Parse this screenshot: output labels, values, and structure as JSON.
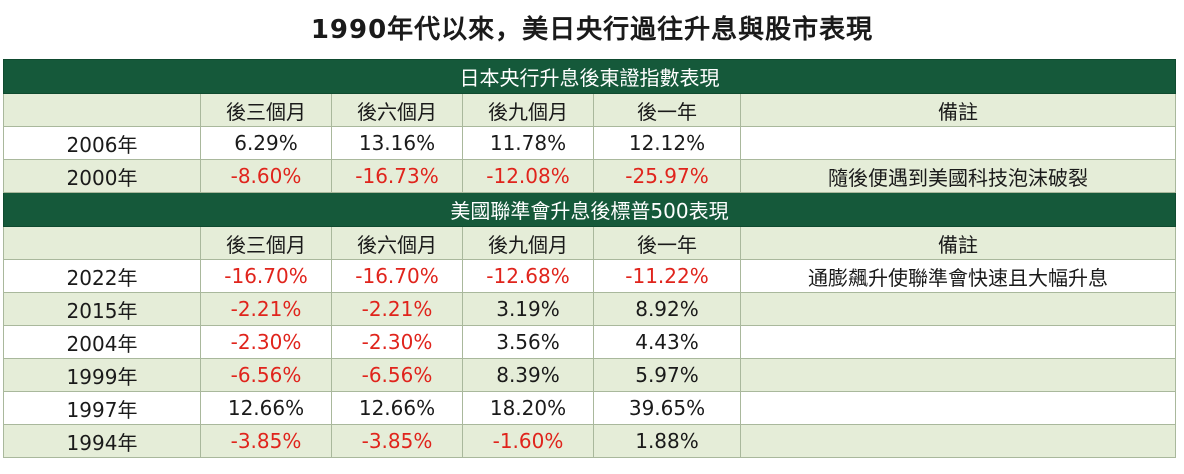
{
  "title": "1990年代以來，美日央行過往升息與股市表現",
  "japan": {
    "header": "日本央行升息後東證指數表現",
    "columns": [
      "",
      "後三個月",
      "後六個月",
      "後九個月",
      "後一年",
      "備註"
    ],
    "rows": [
      {
        "year": "2006年",
        "v": [
          "6.29%",
          "13.16%",
          "11.78%",
          "12.12%"
        ],
        "neg": [
          false,
          false,
          false,
          false
        ],
        "note": ""
      },
      {
        "year": "2000年",
        "v": [
          "-8.60%",
          "-16.73%",
          "-12.08%",
          "-25.97%"
        ],
        "neg": [
          true,
          true,
          true,
          true
        ],
        "note": "隨後便遇到美國科技泡沫破裂"
      }
    ]
  },
  "us": {
    "header": "美國聯準會升息後標普500表現",
    "columns": [
      "",
      "後三個月",
      "後六個月",
      "後九個月",
      "後一年",
      "備註"
    ],
    "rows": [
      {
        "year": "2022年",
        "v": [
          "-16.70%",
          "-16.70%",
          "-12.68%",
          "-11.22%"
        ],
        "neg": [
          true,
          true,
          true,
          true
        ],
        "note": "通膨飆升使聯準會快速且大幅升息"
      },
      {
        "year": "2015年",
        "v": [
          "-2.21%",
          "-2.21%",
          "3.19%",
          "8.92%"
        ],
        "neg": [
          true,
          true,
          false,
          false
        ],
        "note": ""
      },
      {
        "year": "2004年",
        "v": [
          "-2.30%",
          "-2.30%",
          "3.56%",
          "4.43%"
        ],
        "neg": [
          true,
          true,
          false,
          false
        ],
        "note": ""
      },
      {
        "year": "1999年",
        "v": [
          "-6.56%",
          "-6.56%",
          "8.39%",
          "5.97%"
        ],
        "neg": [
          true,
          true,
          false,
          false
        ],
        "note": ""
      },
      {
        "year": "1997年",
        "v": [
          "12.66%",
          "12.66%",
          "18.20%",
          "39.65%"
        ],
        "neg": [
          false,
          false,
          false,
          false
        ],
        "note": ""
      },
      {
        "year": "1994年",
        "v": [
          "-3.85%",
          "-3.85%",
          "-1.60%",
          "1.88%"
        ],
        "neg": [
          true,
          true,
          true,
          false
        ],
        "note": ""
      }
    ]
  },
  "colors": {
    "header_bg": "#15593a",
    "shade": "#e5edd8",
    "negative": "#e0241c"
  }
}
